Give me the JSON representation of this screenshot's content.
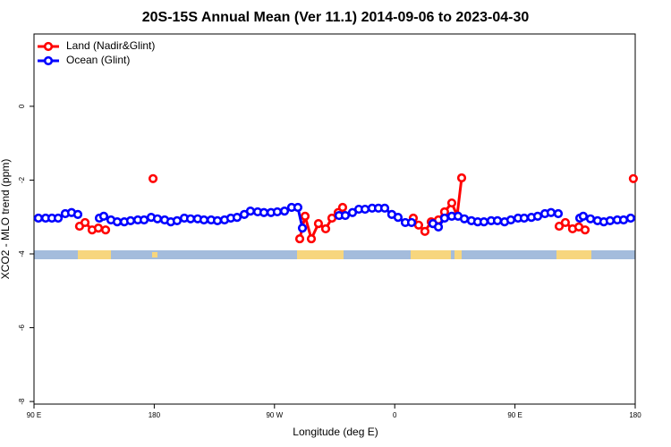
{
  "chart_data": {
    "type": "line",
    "title": "20S-15S Annual Mean (Ver 11.1)   2014-09-06 to 2023-04-30",
    "x_label": "Longitude (deg E)",
    "y_label": "XCO2 - MLO trend (ppm)",
    "xlim": [
      90,
      540
    ],
    "ylim": [
      -8.07,
      1.96
    ],
    "xticks": [
      {
        "value": 90,
        "label": "90 E"
      },
      180,
      {
        "value": 270,
        "label": "90 W"
      },
      {
        "value": 360,
        "label": "0"
      },
      {
        "value": 450,
        "label": "90 E"
      },
      {
        "value": 540,
        "label": "180"
      }
    ],
    "yticks": [
      0,
      -2,
      -4,
      -6,
      -8
    ],
    "legend": "upper left",
    "series": [
      {
        "name": "Land (Nadir&Glint)",
        "color": "#ff0000",
        "x": [
          124.1,
          128.2,
          133.5,
          138.2,
          143.6,
          null,
          179.1,
          null,
          288.9,
          292.9,
          297.6,
          302.9,
          308.3,
          313.0,
          317.7,
          321.0,
          null,
          373.9,
          377.9,
          382.6,
          387.3,
          392.7,
          397.3,
          402.7,
          406.7,
          410.1,
          null,
          483.1,
          487.7,
          493.1,
          497.8,
          502.5,
          null,
          538.6
        ],
        "values": [
          -3.25,
          -3.15,
          -3.35,
          -3.3,
          -3.35,
          null,
          -1.96,
          null,
          -3.59,
          -2.98,
          -3.59,
          -3.18,
          -3.32,
          -3.03,
          -2.88,
          -2.74,
          null,
          -3.03,
          -3.22,
          -3.39,
          -3.13,
          -3.08,
          -2.86,
          -2.62,
          -2.96,
          -1.94,
          null,
          -3.25,
          -3.15,
          -3.32,
          -3.27,
          -3.35,
          null,
          -1.96
        ]
      },
      {
        "name": "Ocean (Glint)",
        "color": "#0000ff",
        "x": [
          93.3,
          98.7,
          103.4,
          108.1,
          113.4,
          118.1,
          122.8,
          null,
          138.9,
          142.2,
          147.6,
          152.3,
          157.6,
          162.3,
          167.7,
          172.4,
          177.7,
          182.4,
          187.8,
          192.4,
          197.1,
          202.5,
          207.2,
          212.5,
          217.2,
          222.6,
          227.3,
          232.6,
          237.3,
          242.0,
          247.4,
          252.0,
          257.4,
          262.1,
          267.4,
          272.1,
          277.5,
          282.8,
          287.5,
          290.9,
          null,
          318.3,
          323.0,
          328.4,
          333.1,
          337.8,
          343.1,
          347.8,
          352.5,
          357.8,
          362.5,
          367.9,
          372.6,
          null,
          388.6,
          392.7,
          397.3,
          402.7,
          407.4,
          412.1,
          417.4,
          422.1,
          426.8,
          432.2,
          436.9,
          442.2,
          446.9,
          452.3,
          456.9,
          462.3,
          467.0,
          472.4,
          477.0,
          482.4,
          null,
          498.5,
          501.1,
          506.5,
          511.8,
          516.5,
          521.2,
          526.6,
          531.3,
          536.6
        ],
        "values": [
          -3.03,
          -3.03,
          -3.03,
          -3.03,
          -2.91,
          -2.88,
          -2.93,
          null,
          -3.03,
          -2.98,
          -3.08,
          -3.13,
          -3.13,
          -3.1,
          -3.08,
          -3.08,
          -3.01,
          -3.05,
          -3.08,
          -3.13,
          -3.1,
          -3.03,
          -3.05,
          -3.05,
          -3.08,
          -3.08,
          -3.1,
          -3.08,
          -3.03,
          -3.01,
          -2.93,
          -2.84,
          -2.86,
          -2.88,
          -2.88,
          -2.86,
          -2.84,
          -2.74,
          -2.74,
          -3.3,
          null,
          -2.96,
          -2.96,
          -2.88,
          -2.79,
          -2.79,
          -2.76,
          -2.76,
          -2.76,
          -2.93,
          -3.01,
          -3.15,
          -3.15,
          null,
          -3.18,
          -3.27,
          -3.03,
          -2.98,
          -2.98,
          -3.05,
          -3.1,
          -3.13,
          -3.13,
          -3.1,
          -3.1,
          -3.13,
          -3.08,
          -3.03,
          -3.03,
          -3.01,
          -2.98,
          -2.91,
          -2.88,
          -2.91,
          null,
          -3.03,
          -2.98,
          -3.05,
          -3.1,
          -3.13,
          -3.1,
          -3.08,
          -3.08,
          -3.03
        ]
      }
    ]
  }
}
